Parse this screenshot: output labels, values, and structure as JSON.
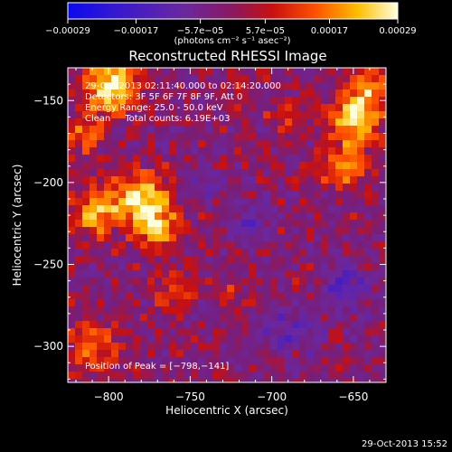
{
  "chart_data": {
    "type": "heatmap",
    "title": "Reconstructed RHESSI Image",
    "xlabel": "Heliocentric X (arcsec)",
    "ylabel": "Heliocentric Y (arcsec)",
    "xlim": [
      -825,
      -630
    ],
    "ylim": [
      -322,
      -130
    ],
    "x_ticks": [
      -800,
      -750,
      -700,
      -650
    ],
    "x_tick_labels": [
      "−800",
      "−750",
      "−700",
      "−650"
    ],
    "y_ticks": [
      -150,
      -200,
      -250,
      -300
    ],
    "y_tick_labels": [
      "−150",
      "−200",
      "−250",
      "−300"
    ],
    "colorbar": {
      "min": -0.00029,
      "max": 0.00029,
      "ticks": [
        -0.00029,
        -0.00017,
        -5.7e-05,
        5.7e-05,
        0.00017,
        0.00029
      ],
      "tick_labels": [
        "−0.00029",
        "−0.00017",
        "−5.7e−05",
        "5.7e−05",
        "0.00017",
        "0.00029"
      ],
      "unit_label": "(photons cm⁻² s⁻¹ asec⁻²)",
      "colormap": [
        "#0a0af0",
        "#4a20c8",
        "#6a28a0",
        "#8a1860",
        "#c81010",
        "#ff5000",
        "#ffc000",
        "#ffffe0"
      ]
    },
    "annotations": [
      "29-Oct-2013 02:11:40.000 to 02:14:20.000",
      "Detectors: 3F 5F 6F 7F 8F 9F, Att 0",
      "Energy Range: 25.0 - 50.0 keV",
      "Clean     Total counts: 6.19E+03"
    ],
    "peak_label": "Position of Peak = [−798,−141]",
    "sources": [
      {
        "x": -780,
        "y": -210,
        "peak": 0.00029
      },
      {
        "x": -798,
        "y": -141,
        "peak": 0.00029
      },
      {
        "x": -648,
        "y": -160,
        "peak": 0.00026
      },
      {
        "x": -810,
        "y": -300,
        "peak": 0.00016
      }
    ]
  },
  "footer_date": "29-Oct-2013 15:52"
}
